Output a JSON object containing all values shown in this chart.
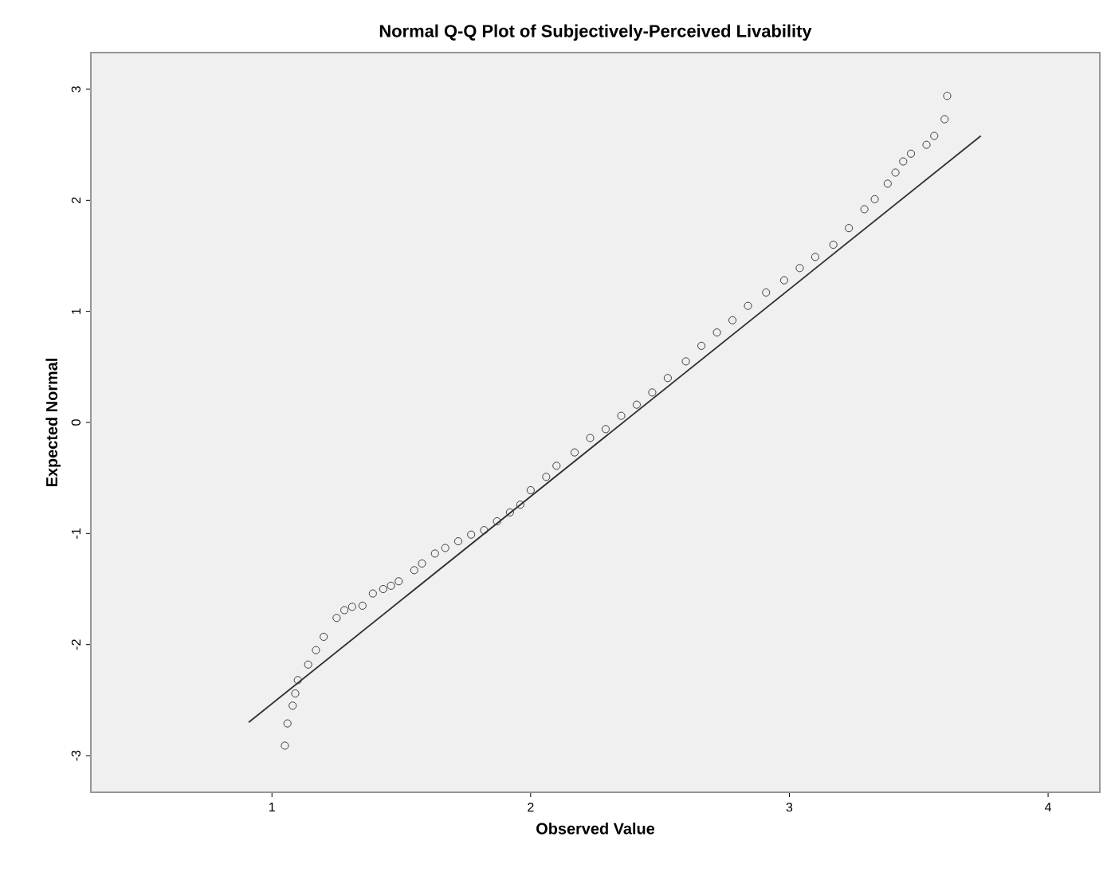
{
  "chart_data": {
    "type": "scatter",
    "title": "Normal Q-Q Plot of Subjectively-Perceived Livability",
    "xlabel": "Observed Value",
    "ylabel": "Expected Normal",
    "xlim": [
      0.3,
      4.2
    ],
    "ylim": [
      -3.33,
      3.33
    ],
    "xticks": [
      1,
      2,
      3,
      4
    ],
    "yticks": [
      -3,
      -2,
      -1,
      0,
      1,
      2,
      3
    ],
    "series": [
      {
        "marker": "circle",
        "color": "#3c3c3c",
        "x": [
          1.05,
          1.06,
          1.08,
          1.09,
          1.1,
          1.14,
          1.17,
          1.2,
          1.25,
          1.28,
          1.31,
          1.35,
          1.39,
          1.43,
          1.46,
          1.49,
          1.55,
          1.58,
          1.63,
          1.67,
          1.72,
          1.77,
          1.82,
          1.87,
          1.92,
          1.96,
          2.0,
          2.06,
          2.1,
          2.17,
          2.23,
          2.29,
          2.35,
          2.41,
          2.47,
          2.53,
          2.6,
          2.66,
          2.72,
          2.78,
          2.84,
          2.91,
          2.98,
          3.04,
          3.1,
          3.17,
          3.23,
          3.29,
          3.33,
          3.38,
          3.41,
          3.44,
          3.47,
          3.53,
          3.56,
          3.6,
          3.61
        ],
        "values": [
          -2.91,
          -2.71,
          -2.55,
          -2.44,
          -2.32,
          -2.18,
          -2.05,
          -1.93,
          -1.76,
          -1.69,
          -1.66,
          -1.65,
          -1.54,
          -1.5,
          -1.47,
          -1.43,
          -1.33,
          -1.27,
          -1.18,
          -1.13,
          -1.07,
          -1.01,
          -0.97,
          -0.89,
          -0.81,
          -0.74,
          -0.61,
          -0.49,
          -0.39,
          -0.27,
          -0.14,
          -0.06,
          0.06,
          0.16,
          0.27,
          0.4,
          0.55,
          0.69,
          0.81,
          0.92,
          1.05,
          1.17,
          1.28,
          1.39,
          1.49,
          1.6,
          1.75,
          1.92,
          2.01,
          2.15,
          2.25,
          2.35,
          2.42,
          2.5,
          2.58,
          2.73,
          2.94
        ]
      },
      {
        "type": "line",
        "marker": "none",
        "color": "#303030",
        "x": [
          0.91,
          3.74
        ],
        "values": [
          -2.7,
          2.58
        ]
      }
    ]
  }
}
